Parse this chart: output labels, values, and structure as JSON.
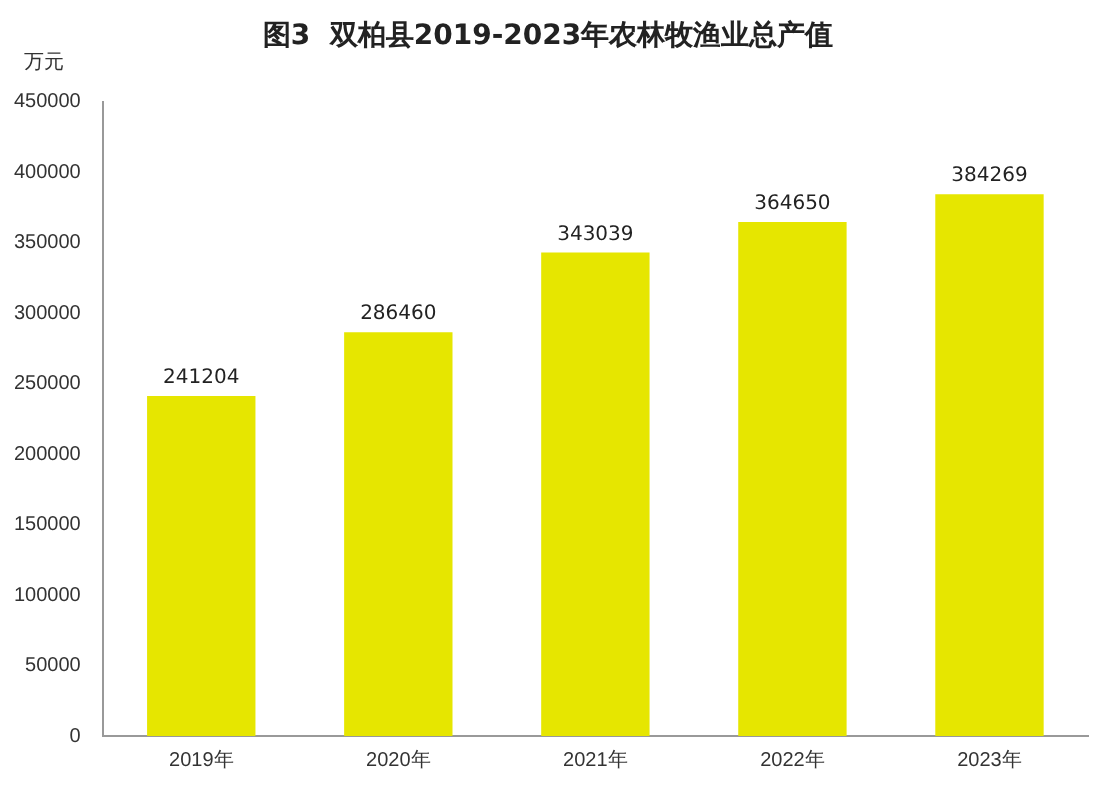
{
  "chart_data": {
    "type": "bar",
    "title": "图3  双柏县2019-2023年农林牧渔业总产值",
    "ylabel": "万元",
    "categories": [
      "2019年",
      "2020年",
      "2021年",
      "2022年",
      "2023年"
    ],
    "values": [
      241204,
      286460,
      343039,
      364650,
      384269
    ],
    "color": "#e6e600",
    "ylim": [
      0,
      450000
    ],
    "yticks": [
      0,
      50000,
      100000,
      150000,
      200000,
      250000,
      300000,
      350000,
      400000,
      450000
    ],
    "grid": false,
    "data_labels": true
  }
}
